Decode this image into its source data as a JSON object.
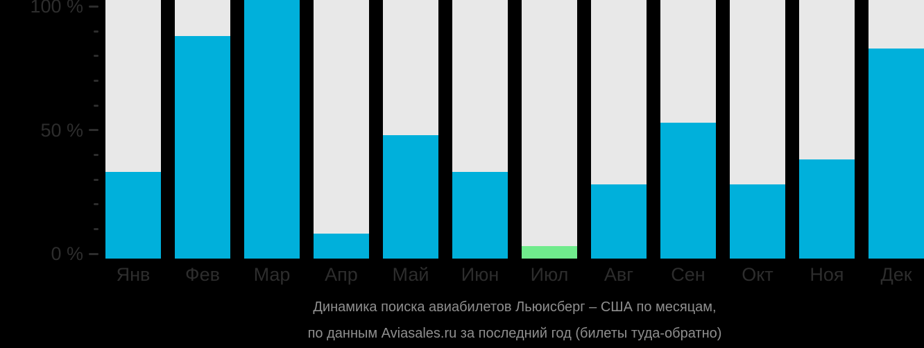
{
  "chart_data": {
    "type": "bar",
    "title": "Динамика поиска авиабилетов Льюисберг – США по месяцам,",
    "subtitle": "по данным Aviasales.ru за последний год (билеты туда-обратно)",
    "categories": [
      "Янв",
      "Фев",
      "Мар",
      "Апр",
      "Май",
      "Июн",
      "Июл",
      "Авг",
      "Сен",
      "Окт",
      "Ноя",
      "Дек"
    ],
    "values": [
      33,
      88,
      100,
      8,
      48,
      33,
      3,
      28,
      53,
      28,
      38,
      83
    ],
    "unit": "%",
    "highlight": {
      "index": 6,
      "category": "Июл",
      "reason": "lowest-month"
    },
    "xlabel": "",
    "ylabel": "",
    "ylim": [
      0,
      100
    ],
    "y_axis": {
      "major_ticks": [
        {
          "label": "100 %",
          "value": 100
        },
        {
          "label": "50 %",
          "value": 50
        },
        {
          "label": "0 %",
          "value": 0
        }
      ],
      "minor_tick_values": [
        90,
        80,
        70,
        60,
        40,
        30,
        20,
        10
      ]
    },
    "legend_position": "none",
    "grid": false,
    "colors": {
      "bar_fill": "#00b0db",
      "bar_highlight": "#70eb8c",
      "bar_track": "#e8e8e8",
      "background": "#000000",
      "axis_text": "#2d2d2d",
      "caption_text": "#8f8f8f"
    }
  }
}
